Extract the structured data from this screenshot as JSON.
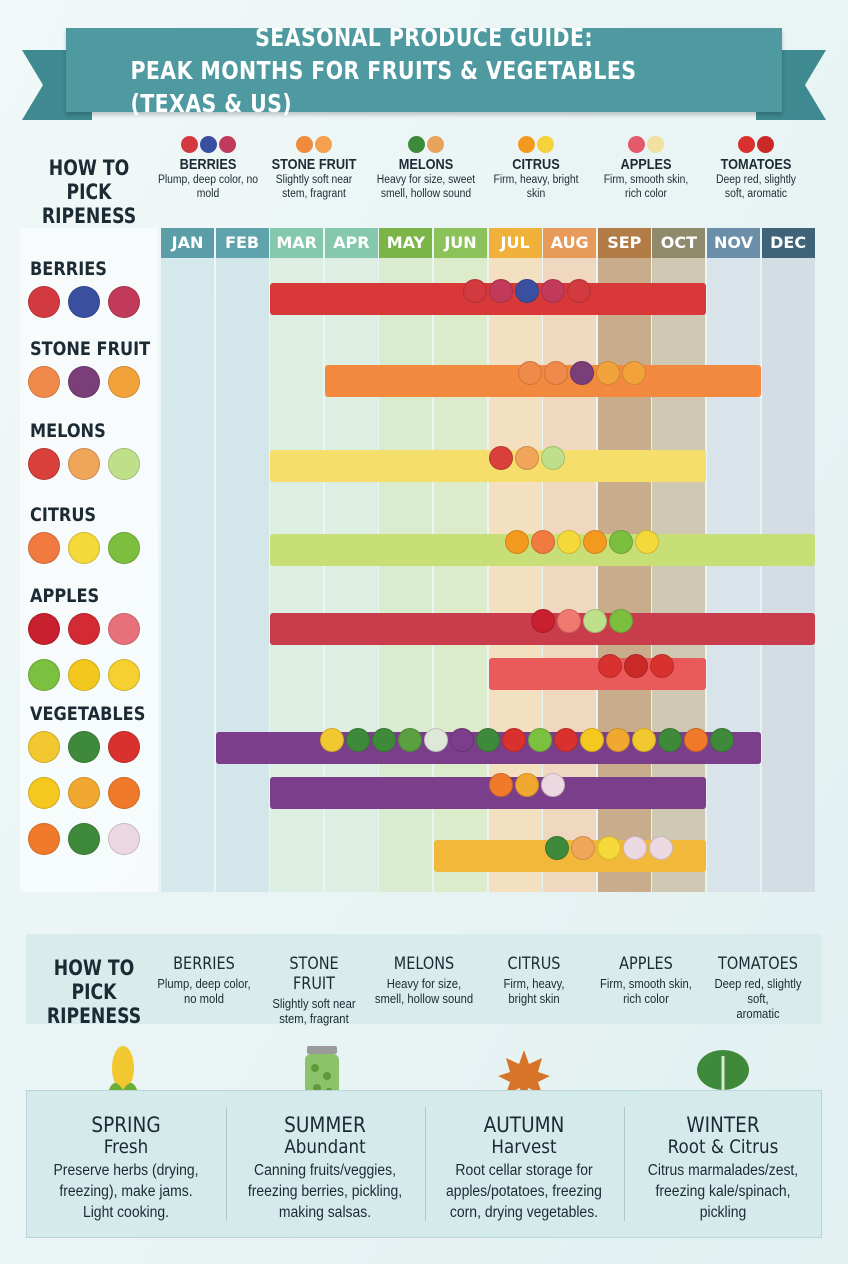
{
  "title": {
    "line1": "SEASONAL PRODUCE GUIDE:",
    "line2": "PEAK MONTHS FOR FRUITS & VEGETABLES (TEXAS & US)"
  },
  "pick_top": {
    "title_line1": "HOW TO PICK",
    "title_line2": "RIPENESS",
    "items": [
      {
        "name": "BERRIES",
        "desc": "Plump, deep color, no mold",
        "icon": "berries-icon",
        "colors": [
          "#d33a3f",
          "#3a4fa0",
          "#c23a5a"
        ]
      },
      {
        "name": "STONE FRUIT",
        "desc": "Slightly soft near stem, fragrant",
        "icon": "peach-icon",
        "colors": [
          "#f08a3c",
          "#f4a04c"
        ]
      },
      {
        "name": "MELONS",
        "desc": "Heavy for size, sweet smell, hollow sound",
        "icon": "watermelon-icon",
        "colors": [
          "#3d8a3b",
          "#e8a25a"
        ]
      },
      {
        "name": "CITRUS",
        "desc": "Firm, heavy, bright skin",
        "icon": "orange-icon",
        "colors": [
          "#f39a1e",
          "#f5d13a"
        ]
      },
      {
        "name": "APPLES",
        "desc": "Firm, smooth skin, rich color",
        "icon": "apple-icon",
        "colors": [
          "#e45a6a",
          "#f2e0a0"
        ]
      },
      {
        "name": "TOMATOES",
        "desc": "Deep red, slightly soft, aromatic",
        "icon": "tomato-icon",
        "colors": [
          "#d9322e",
          "#c92a28"
        ]
      }
    ]
  },
  "months": [
    "JAN",
    "FEB",
    "MAR",
    "APR",
    "MAY",
    "JUN",
    "JUL",
    "AUG",
    "SEP",
    "OCT",
    "NOV",
    "DEC"
  ],
  "month_colors": [
    "#5b9ea8",
    "#5fa4ad",
    "#86c8ad",
    "#86c8ad",
    "#7bb548",
    "#8cc25a",
    "#efb13a",
    "#e89a5a",
    "#b17c45",
    "#8f8a6c",
    "#6b8fa8",
    "#3f6378"
  ],
  "month_tints": [
    "#d5e8ec",
    "#d3e6ea",
    "#dcefe2",
    "#dcefe2",
    "#d9ecd0",
    "#dcecca",
    "#f2e0c0",
    "#f0d8c0",
    "#c9ac8c",
    "#cfc8b2",
    "#d8e3ea",
    "#d4dde3"
  ],
  "rows": [
    {
      "label": "BERRIES",
      "icons": [
        [
          "strawberry-icon",
          "#d33a3f"
        ],
        [
          "blueberry-icon",
          "#3a4fa0"
        ],
        [
          "raspberry-icon",
          "#c23a5a"
        ]
      ]
    },
    {
      "label": "STONE FRUIT",
      "icons": [
        [
          "peach-icon",
          "#f08a4a"
        ],
        [
          "plum-icon",
          "#7a3e78"
        ],
        [
          "apricot-icon",
          "#f2a23a"
        ]
      ]
    },
    {
      "label": "MELONS",
      "icons": [
        [
          "watermelon-icon",
          "#d9403c"
        ],
        [
          "cantaloupe-icon",
          "#f0a55a"
        ],
        [
          "honeydew-icon",
          "#bfe08a"
        ]
      ]
    },
    {
      "label": "CITRUS",
      "icons": [
        [
          "grapefruit-icon",
          "#f07a40"
        ],
        [
          "lemon-icon",
          "#f5d83a"
        ],
        [
          "lime-icon",
          "#7cbf3e"
        ]
      ]
    },
    {
      "label": "APPLES",
      "icons": [
        [
          "red-apple-icon",
          "#c8202e"
        ],
        [
          "red-apple-icon",
          "#d42a34"
        ],
        [
          "pink-apple-icon",
          "#e8707a"
        ],
        [
          "green-apple-icon",
          "#7cc040"
        ],
        [
          "yellow-apple-icon",
          "#f2c81e"
        ],
        [
          "yellow-apple-icon",
          "#f5d030"
        ]
      ]
    },
    {
      "label": "VEGETABLES",
      "icons": [
        [
          "corn-icon",
          "#f2c830"
        ],
        [
          "broccoli-icon",
          "#3f8a3a"
        ],
        [
          "tomato-icon",
          "#d9322e"
        ],
        [
          "bell-pepper-icon",
          "#f5c820"
        ],
        [
          "squash-icon",
          "#f0a830"
        ],
        [
          "carrot-icon",
          "#f07a2a"
        ],
        [
          "carrot-icon",
          "#f07a2a"
        ],
        [
          "kale-icon",
          "#3f8a3a"
        ],
        [
          "onion-icon",
          "#ecd8e0"
        ]
      ]
    }
  ],
  "bars": [
    {
      "name": "berries-bar",
      "start": 3,
      "end": 10,
      "color": "#d83838",
      "icons": [
        "#d33a3f",
        "#c23a5a",
        "#3a4fa0",
        "#c23a5a",
        "#d33a3f"
      ]
    },
    {
      "name": "stone-fruit-bar",
      "start": 4,
      "end": 11,
      "color": "#f2893e",
      "icons": [
        "#f08a4a",
        "#f08a4a",
        "#7a3e78",
        "#f2a23a",
        "#f2a23a"
      ]
    },
    {
      "name": "melons-bar",
      "start": 3,
      "end": 10,
      "color": "#f5df6a",
      "icons": [
        "#d9403c",
        "#f0a55a",
        "#bfe08a"
      ]
    },
    {
      "name": "citrus-bar",
      "start": 3,
      "end": 12,
      "color": "#c8df78",
      "icons": [
        "#f39a1e",
        "#f07a40",
        "#f5d83a",
        "#f39a1e",
        "#7cbf3e",
        "#f5d83a"
      ]
    },
    {
      "name": "apples-bar",
      "start": 3,
      "end": 12,
      "color": "#c83c4c",
      "icons": [
        "#c8202e",
        "#f07a70",
        "#bfe08a",
        "#7cbf3e"
      ]
    },
    {
      "name": "tomatoes-bar",
      "start": 7,
      "end": 10,
      "color": "#ea5a5a",
      "icons": [
        "#d9322e",
        "#c92a28",
        "#d9322e"
      ]
    },
    {
      "name": "vegetables-bar",
      "start": 2,
      "end": 11,
      "color": "#7a3e8a",
      "icons": [
        "#f2c830",
        "#3f8a3a",
        "#3f8a3a",
        "#5aa040",
        "#dfe8d8",
        "#7a3e8a",
        "#3f8a3a",
        "#d9322e",
        "#7cc040",
        "#d9322e",
        "#f5c820",
        "#f0a830",
        "#f2c830",
        "#3f8a3a",
        "#f07a2a",
        "#3f8a3a"
      ]
    },
    {
      "name": "squash-bar",
      "start": 3,
      "end": 10,
      "color": "#7a3e8a",
      "icons": [
        "#f07a2a",
        "#f0a830",
        "#ecd8e0"
      ]
    },
    {
      "name": "greens-bar",
      "start": 6,
      "end": 10,
      "color": "#f2b83a",
      "icons": [
        "#3f8a3a",
        "#f0a55a",
        "#f5d83a",
        "#ecd8e0",
        "#ecd8e0"
      ]
    }
  ],
  "pick_bottom": {
    "title_line1": "HOW TO PICK",
    "title_line2": "RIPENESS",
    "items": [
      {
        "name": "BERRIES",
        "desc1": "Plump, deep color,",
        "desc2": "no mold"
      },
      {
        "name": "STONE FRUIT",
        "desc1": "Slightly soft near",
        "desc2": "stem, fragrant"
      },
      {
        "name": "MELONS",
        "desc1": "Heavy for size,",
        "desc2": "smell, hollow sound"
      },
      {
        "name": "CITRUS",
        "desc1": "Firm, heavy,",
        "desc2": "bright skin"
      },
      {
        "name": "APPLES",
        "desc1": "Firm, smooth skin,",
        "desc2": "rich color"
      },
      {
        "name": "TOMATOES",
        "desc1": "Deep red, slightly soft,",
        "desc2": "aromatic"
      }
    ]
  },
  "seasons": [
    {
      "title": "SPRING",
      "sub": "Fresh",
      "lines": [
        "Preserve herbs (drying,",
        "freezing), make jams.",
        "Light cooking."
      ],
      "icon": "corn-icon"
    },
    {
      "title": "SUMMER",
      "sub": "Abundant",
      "lines": [
        "Canning fruits/veggies,",
        "freezing berries, pickling,",
        "making salsas."
      ],
      "icon": "jar-icon"
    },
    {
      "title": "AUTUMN",
      "sub": "Harvest",
      "lines": [
        "Root cellar storage for",
        "apples/potatoes, freezing",
        "corn, drying vegetables."
      ],
      "icon": "maple-leaf-icon"
    },
    {
      "title": "WINTER",
      "sub": "Root & Citrus",
      "lines": [
        "Citrus marmalades/zest,",
        "freezing kale/spinach,",
        "pickling"
      ],
      "icon": "kale-icon"
    }
  ]
}
